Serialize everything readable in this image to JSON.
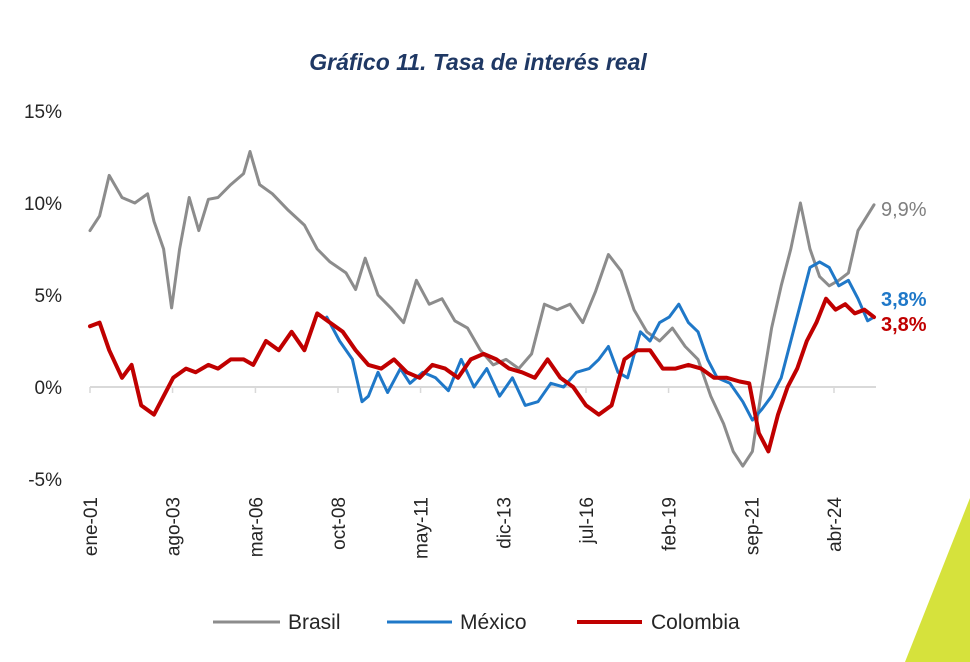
{
  "chart_data": {
    "type": "line",
    "title": "Gráfico 11. Tasa de interés real",
    "xlabel": "",
    "ylabel": "",
    "ylim": [
      -5,
      15
    ],
    "y_ticks": [
      -5,
      0,
      5,
      10,
      15
    ],
    "y_tick_labels": [
      "-5%",
      "0%",
      "5%",
      "10%",
      "15%"
    ],
    "x_range": [
      2001.0,
      2025.5
    ],
    "x_tick_labels": [
      "ene-01",
      "ago-03",
      "mar-06",
      "oct-08",
      "may-11",
      "dic-13",
      "jul-16",
      "feb-19",
      "sep-21",
      "abr-24"
    ],
    "x_tick_values": [
      2001.0,
      2003.58,
      2006.17,
      2008.75,
      2011.33,
      2013.92,
      2016.5,
      2019.08,
      2021.67,
      2024.25
    ],
    "end_labels": {
      "brasil": "9,9%",
      "mexico": "3,8%",
      "colombia": "3,8%"
    },
    "series": [
      {
        "key": "brasil",
        "name": "Brasil",
        "color": "#8c8c8c",
        "x": [
          2001.0,
          2001.3,
          2001.6,
          2002.0,
          2002.4,
          2002.8,
          2003.0,
          2003.3,
          2003.55,
          2003.8,
          2004.1,
          2004.4,
          2004.7,
          2005.0,
          2005.4,
          2005.8,
          2006.0,
          2006.3,
          2006.7,
          2007.2,
          2007.7,
          2008.1,
          2008.5,
          2009.0,
          2009.3,
          2009.6,
          2010.0,
          2010.4,
          2010.8,
          2011.2,
          2011.6,
          2012.0,
          2012.4,
          2012.8,
          2013.2,
          2013.6,
          2014.0,
          2014.4,
          2014.8,
          2015.2,
          2015.6,
          2016.0,
          2016.4,
          2016.8,
          2017.2,
          2017.6,
          2018.0,
          2018.4,
          2018.8,
          2019.2,
          2019.6,
          2020.0,
          2020.4,
          2020.8,
          2021.1,
          2021.4,
          2021.7,
          2022.0,
          2022.3,
          2022.6,
          2022.9,
          2023.2,
          2023.5,
          2023.8,
          2024.1,
          2024.4,
          2024.7,
          2025.0,
          2025.5
        ],
        "values": [
          8.5,
          9.3,
          11.5,
          10.3,
          10.0,
          10.5,
          9.0,
          7.5,
          4.3,
          7.5,
          10.3,
          8.5,
          10.2,
          10.3,
          11.0,
          11.6,
          12.8,
          11.0,
          10.5,
          9.6,
          8.8,
          7.5,
          6.8,
          6.2,
          5.3,
          7.0,
          5.0,
          4.3,
          3.5,
          5.8,
          4.5,
          4.8,
          3.6,
          3.2,
          2.0,
          1.2,
          1.5,
          1.0,
          1.8,
          4.5,
          4.2,
          4.5,
          3.5,
          5.2,
          7.2,
          6.3,
          4.2,
          3.0,
          2.5,
          3.2,
          2.2,
          1.5,
          -0.5,
          -2.0,
          -3.5,
          -4.3,
          -3.5,
          0.0,
          3.2,
          5.5,
          7.5,
          10.0,
          7.5,
          6.0,
          5.5,
          5.8,
          6.2,
          8.5,
          9.9
        ]
      },
      {
        "key": "mexico",
        "name": "México",
        "color": "#1f78c8",
        "x": [
          2008.4,
          2008.8,
          2009.2,
          2009.5,
          2009.7,
          2010.0,
          2010.3,
          2010.7,
          2011.0,
          2011.4,
          2011.8,
          2012.2,
          2012.6,
          2013.0,
          2013.4,
          2013.8,
          2014.2,
          2014.6,
          2015.0,
          2015.4,
          2015.8,
          2016.2,
          2016.6,
          2016.9,
          2017.2,
          2017.5,
          2017.8,
          2018.2,
          2018.5,
          2018.8,
          2019.1,
          2019.4,
          2019.7,
          2020.0,
          2020.3,
          2020.6,
          2021.0,
          2021.4,
          2021.7,
          2022.0,
          2022.3,
          2022.6,
          2022.9,
          2023.2,
          2023.5,
          2023.8,
          2024.1,
          2024.4,
          2024.7,
          2025.0,
          2025.3,
          2025.5
        ],
        "values": [
          3.8,
          2.5,
          1.5,
          -0.8,
          -0.5,
          0.8,
          -0.3,
          1.0,
          0.2,
          0.8,
          0.5,
          -0.2,
          1.5,
          0.0,
          1.0,
          -0.5,
          0.5,
          -1.0,
          -0.8,
          0.2,
          0.0,
          0.8,
          1.0,
          1.5,
          2.2,
          0.8,
          0.5,
          3.0,
          2.5,
          3.5,
          3.8,
          4.5,
          3.5,
          3.0,
          1.5,
          0.5,
          0.2,
          -0.8,
          -1.8,
          -1.2,
          -0.5,
          0.5,
          2.5,
          4.5,
          6.5,
          6.8,
          6.5,
          5.5,
          5.8,
          4.8,
          3.6,
          3.8
        ]
      },
      {
        "key": "colombia",
        "name": "Colombia",
        "color": "#c00000",
        "x": [
          2001.0,
          2001.3,
          2001.6,
          2002.0,
          2002.3,
          2002.6,
          2003.0,
          2003.3,
          2003.6,
          2004.0,
          2004.3,
          2004.7,
          2005.0,
          2005.4,
          2005.8,
          2006.1,
          2006.5,
          2006.9,
          2007.3,
          2007.7,
          2008.1,
          2008.5,
          2008.9,
          2009.3,
          2009.7,
          2010.1,
          2010.5,
          2010.9,
          2011.3,
          2011.7,
          2012.1,
          2012.5,
          2012.9,
          2013.3,
          2013.7,
          2014.1,
          2014.5,
          2014.9,
          2015.3,
          2015.7,
          2016.1,
          2016.5,
          2016.9,
          2017.3,
          2017.7,
          2018.1,
          2018.5,
          2018.9,
          2019.3,
          2019.7,
          2020.1,
          2020.5,
          2020.9,
          2021.3,
          2021.6,
          2021.9,
          2022.2,
          2022.5,
          2022.8,
          2023.1,
          2023.4,
          2023.7,
          2024.0,
          2024.3,
          2024.6,
          2024.9,
          2025.2,
          2025.5
        ],
        "values": [
          3.3,
          3.5,
          2.0,
          0.5,
          1.2,
          -1.0,
          -1.5,
          -0.5,
          0.5,
          1.0,
          0.8,
          1.2,
          1.0,
          1.5,
          1.5,
          1.2,
          2.5,
          2.0,
          3.0,
          2.0,
          4.0,
          3.5,
          3.0,
          2.0,
          1.2,
          1.0,
          1.5,
          0.8,
          0.5,
          1.2,
          1.0,
          0.5,
          1.5,
          1.8,
          1.5,
          1.0,
          0.8,
          0.5,
          1.5,
          0.5,
          0.0,
          -1.0,
          -1.5,
          -1.0,
          1.5,
          2.0,
          2.0,
          1.0,
          1.0,
          1.2,
          1.0,
          0.5,
          0.5,
          0.3,
          0.2,
          -2.5,
          -3.5,
          -1.5,
          0.0,
          1.0,
          2.5,
          3.5,
          4.8,
          4.2,
          4.5,
          4.0,
          4.2,
          3.8
        ]
      }
    ]
  }
}
